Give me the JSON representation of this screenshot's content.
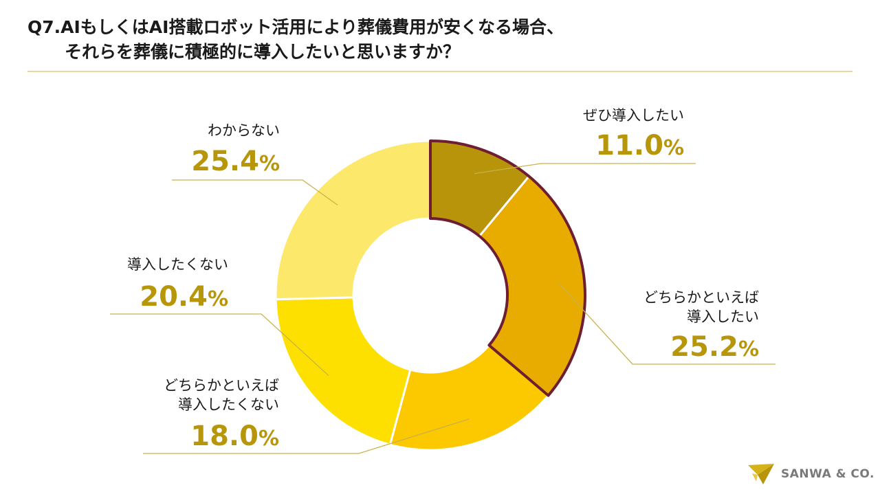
{
  "title_line1": "Q7.AIもしくはAI搭載ロボット活用により葬儀費用が安くなる場合、",
  "title_line2": "それらを葬儀に積極的に導入したいと思いますか？",
  "brand": "SANWA & CO.",
  "chart_data": {
    "type": "pie",
    "donut": true,
    "slices": [
      {
        "label": "ぜひ導入したい",
        "label_lines": [
          "ぜひ導入したい"
        ],
        "value": 11.0,
        "value_text": "11.0",
        "color": "#b8940a"
      },
      {
        "label": "どちらかといえば導入したい",
        "label_lines": [
          "どちらかといえば",
          "導入したい"
        ],
        "value": 25.2,
        "value_text": "25.2",
        "color": "#e8ac00"
      },
      {
        "label": "どちらかといえば導入したくない",
        "label_lines": [
          "どちらかといえば",
          "導入したくない"
        ],
        "value": 18.0,
        "value_text": "18.0",
        "color": "#fcc800"
      },
      {
        "label": "導入したくない",
        "label_lines": [
          "導入したくない"
        ],
        "value": 20.4,
        "value_text": "20.4",
        "color": "#fde000"
      },
      {
        "label": "わからない",
        "label_lines": [
          "わからない"
        ],
        "value": 25.4,
        "value_text": "25.4",
        "color": "#fce96c"
      }
    ],
    "unit": "%",
    "highlight_color": "#6e1e32"
  }
}
